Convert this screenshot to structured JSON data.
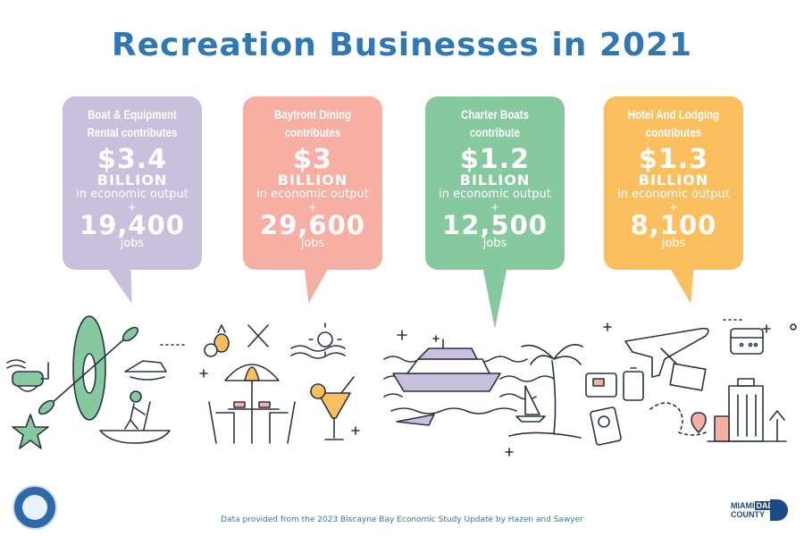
{
  "title": "Recreation Businesses in 2021",
  "bubbles": [
    {
      "head": "Boat & Equipment Rental contributes",
      "amount": "$3.4",
      "unit": "BILLION",
      "desc": "in economic output",
      "plus": "+",
      "jobs": "19,400",
      "jobs_label": "jobs",
      "color": "#c8c0dc"
    },
    {
      "head": "Bayfront Dining contributes",
      "amount": "$3",
      "unit": "BILLION",
      "desc": "in economic output",
      "plus": "+",
      "jobs": "29,600",
      "jobs_label": "jobs",
      "color": "#f7aea3"
    },
    {
      "head": "Charter Boats contribute",
      "amount": "$1.2",
      "unit": "BILLION",
      "desc": "in economic output",
      "plus": "+",
      "jobs": "12,500",
      "jobs_label": "jobs",
      "color": "#86c99f"
    },
    {
      "head": "Hotel And Lodging contributes",
      "amount": "$1.3",
      "unit": "BILLION",
      "desc": "in economic output",
      "plus": "+",
      "jobs": "8,100",
      "jobs_label": "jobs",
      "color": "#fbbf5e"
    }
  ],
  "footer": "Data provided from the 2023 Biscayne Bay Economic Study Update by Hazen and Sawyer",
  "logo": {
    "line1a": "MIAMI",
    "line1b": "DADE",
    "line2": "COUNTY"
  }
}
